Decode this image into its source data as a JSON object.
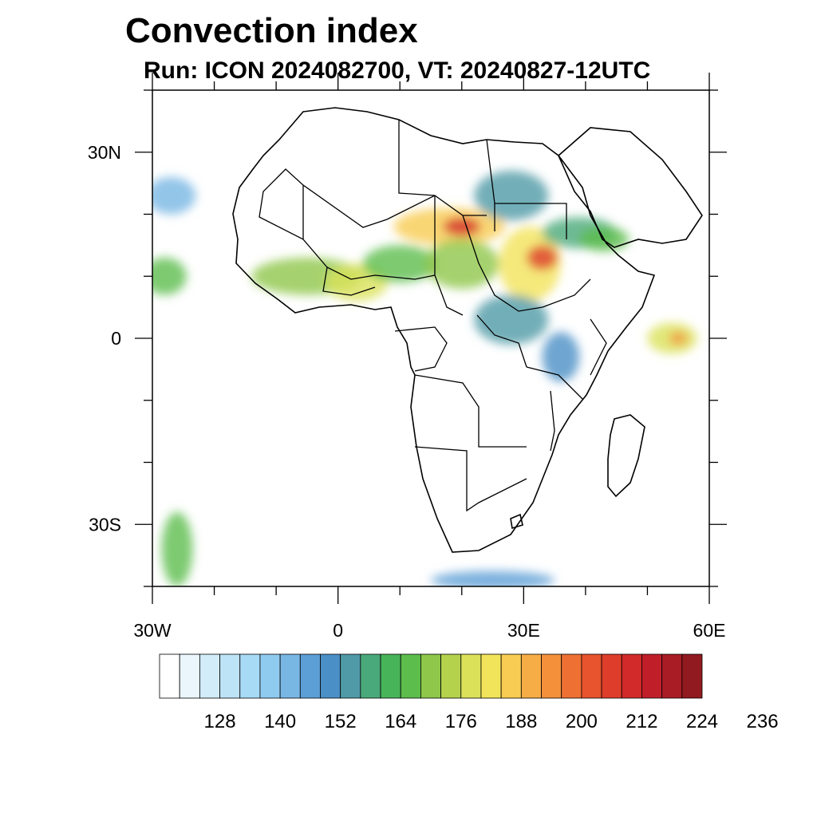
{
  "title": "Convection index",
  "subtitle": "Run: ICON 2024082700,  VT: 20240827-12UTC",
  "map": {
    "projection": "cylindrical equidistant",
    "lon_range": [
      -30,
      60
    ],
    "lat_range": [
      -40,
      40
    ],
    "lon_ticks": [
      {
        "value": -30,
        "label": "30W"
      },
      {
        "value": 0,
        "label": "0"
      },
      {
        "value": 30,
        "label": "30E"
      },
      {
        "value": 60,
        "label": "60E"
      }
    ],
    "lat_ticks": [
      {
        "value": 30,
        "label": "30N"
      },
      {
        "value": 0,
        "label": "0"
      },
      {
        "value": -30,
        "label": "30S"
      }
    ]
  },
  "colorbar": {
    "colors": [
      "#ffffff",
      "#eaf5fc",
      "#d2ecf9",
      "#bde3f7",
      "#a6daf5",
      "#8fcbef",
      "#78b6e4",
      "#5c9fd6",
      "#4a8fc6",
      "#4f9aa6",
      "#4aa97a",
      "#48b45a",
      "#5cbd4c",
      "#8ec74a",
      "#b5d24c",
      "#dbe25a",
      "#f2e45a",
      "#f8cc52",
      "#f7ad45",
      "#f48f3a",
      "#ee7033",
      "#e7542d",
      "#dd3d2a",
      "#d22a2a",
      "#c01f2a",
      "#a91c25",
      "#901a1f"
    ],
    "labels": [
      "128",
      "140",
      "152",
      "164",
      "176",
      "188",
      "200",
      "212",
      "224",
      "236"
    ]
  },
  "field_blobs": [
    {
      "lon": -28,
      "lat": 10,
      "rx": 3.5,
      "ry": 3,
      "level": 12
    },
    {
      "lon": -27,
      "lat": 23,
      "rx": 4,
      "ry": 3,
      "level": 6
    },
    {
      "lon": -5,
      "lat": 10,
      "rx": 9,
      "ry": 3,
      "level": 13
    },
    {
      "lon": 3,
      "lat": 9,
      "rx": 5,
      "ry": 3,
      "level": 15
    },
    {
      "lon": 10,
      "lat": 12,
      "rx": 6,
      "ry": 3,
      "level": 12
    },
    {
      "lon": 18,
      "lat": 18,
      "rx": 9,
      "ry": 3,
      "level": 17
    },
    {
      "lon": 20,
      "lat": 18,
      "rx": 3,
      "ry": 1.5,
      "level": 23
    },
    {
      "lon": 20,
      "lat": 12,
      "rx": 6,
      "ry": 4,
      "level": 13
    },
    {
      "lon": 31,
      "lat": 12,
      "rx": 5,
      "ry": 6,
      "level": 16
    },
    {
      "lon": 33,
      "lat": 13,
      "rx": 2.5,
      "ry": 2,
      "level": 22
    },
    {
      "lon": 28,
      "lat": 23,
      "rx": 6,
      "ry": 4,
      "level": 9
    },
    {
      "lon": 39,
      "lat": 17,
      "rx": 6,
      "ry": 2.5,
      "level": 10
    },
    {
      "lon": 43,
      "lat": 16,
      "rx": 4,
      "ry": 2,
      "level": 12
    },
    {
      "lon": 28,
      "lat": 3,
      "rx": 6,
      "ry": 4,
      "level": 9
    },
    {
      "lon": 36,
      "lat": -3,
      "rx": 3,
      "ry": 4,
      "level": 8
    },
    {
      "lon": 54,
      "lat": 0,
      "rx": 4,
      "ry": 2.5,
      "level": 15
    },
    {
      "lon": 55,
      "lat": 0,
      "rx": 1.5,
      "ry": 1,
      "level": 19
    },
    {
      "lon": -26,
      "lat": -34,
      "rx": 2.5,
      "ry": 6,
      "level": 12
    },
    {
      "lon": 25,
      "lat": -39,
      "rx": 10,
      "ry": 1.5,
      "level": 7
    }
  ]
}
